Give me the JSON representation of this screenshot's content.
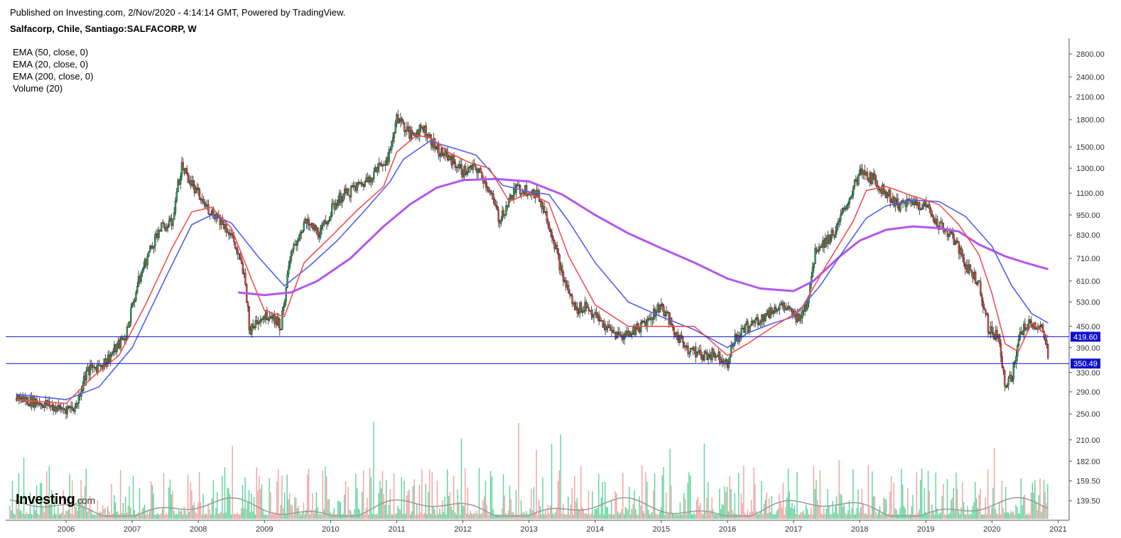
{
  "header": {
    "published": "Published on Investing.com, 2/Nov/2020 - 4:14:14 GMT, Powered by TradingView.",
    "symbol": "Salfacorp, Chile, Santiago:SALFACORP, W"
  },
  "indicators": [
    "EMA (50, close, 0)",
    "EMA (20, close, 0)",
    "EMA (200, close, 0)",
    "Volume (20)"
  ],
  "logo": {
    "main": "Investing",
    "suffix": ".com"
  },
  "colors": {
    "up": "#26a65b",
    "down": "#e8453c",
    "vol_up": "#5ed39a",
    "vol_down": "#f2a0a0",
    "vol_ma": "#9a9a9a",
    "ema20": "#f05050",
    "ema50": "#5060f0",
    "ema200": "#b455f0",
    "hline": "#1010cc",
    "axis": "#555555"
  },
  "chart_data": {
    "type": "line",
    "scale": "log",
    "x_ticks": [
      "2006",
      "2007",
      "2008",
      "2009",
      "2010",
      "2011",
      "2012",
      "2013",
      "2014",
      "2015",
      "2016",
      "2017",
      "2018",
      "2019",
      "2020",
      "2021"
    ],
    "y_ticks": [
      139.5,
      159.5,
      182.0,
      210.0,
      250.0,
      290.0,
      330.0,
      390.0,
      450.0,
      530.0,
      610.0,
      710.0,
      830.0,
      950.0,
      1100.0,
      1300.0,
      1500.0,
      1800.0,
      2100.0,
      2400.0,
      2800.0
    ],
    "price_series": {
      "name": "SALFACORP",
      "x": [
        2005.25,
        2005.6,
        2005.9,
        2006.15,
        2006.3,
        2006.6,
        2006.9,
        2007.1,
        2007.4,
        2007.6,
        2007.75,
        2007.95,
        2008.1,
        2008.3,
        2008.5,
        2008.7,
        2008.78,
        2008.9,
        2009.1,
        2009.25,
        2009.4,
        2009.6,
        2009.85,
        2010.1,
        2010.3,
        2010.5,
        2010.7,
        2010.9,
        2011.0,
        2011.2,
        2011.4,
        2011.6,
        2011.8,
        2012.0,
        2012.2,
        2012.35,
        2012.55,
        2012.8,
        2013.0,
        2013.15,
        2013.3,
        2013.5,
        2013.7,
        2013.85,
        2014.0,
        2014.2,
        2014.4,
        2014.6,
        2014.8,
        2015.0,
        2015.2,
        2015.4,
        2015.6,
        2015.8,
        2016.0,
        2016.1,
        2016.3,
        2016.55,
        2016.8,
        2017.05,
        2017.2,
        2017.35,
        2017.5,
        2017.65,
        2017.85,
        2018.0,
        2018.2,
        2018.4,
        2018.6,
        2018.8,
        2019.0,
        2019.2,
        2019.4,
        2019.6,
        2019.8,
        2019.95,
        2020.1,
        2020.2,
        2020.3,
        2020.45,
        2020.6,
        2020.75,
        2020.85
      ],
      "values": [
        278,
        270,
        258,
        262,
        330,
        355,
        420,
        610,
        860,
        900,
        1320,
        1120,
        1010,
        940,
        830,
        620,
        430,
        475,
        490,
        450,
        720,
        900,
        840,
        1050,
        1120,
        1180,
        1290,
        1430,
        1850,
        1620,
        1710,
        1480,
        1390,
        1270,
        1300,
        1180,
        920,
        1130,
        1130,
        1070,
        900,
        630,
        500,
        520,
        480,
        440,
        420,
        440,
        470,
        520,
        430,
        390,
        370,
        375,
        355,
        410,
        450,
        480,
        520,
        475,
        520,
        770,
        800,
        860,
        1070,
        1260,
        1210,
        1100,
        1010,
        1040,
        1010,
        890,
        820,
        680,
        600,
        440,
        420,
        300,
        320,
        440,
        460,
        440,
        370
      ]
    },
    "ema20": {
      "name": "EMA (20, close, 0)",
      "x": [
        2005.25,
        2006.0,
        2006.4,
        2006.8,
        2007.2,
        2007.6,
        2007.9,
        2008.2,
        2008.5,
        2008.8,
        2009.0,
        2009.3,
        2009.6,
        2010.0,
        2010.4,
        2010.8,
        2011.0,
        2011.3,
        2011.5,
        2011.8,
        2012.1,
        2012.4,
        2012.7,
        2013.0,
        2013.3,
        2013.6,
        2014.0,
        2014.5,
        2015.0,
        2015.5,
        2016.0,
        2016.3,
        2016.7,
        2017.1,
        2017.5,
        2017.9,
        2018.1,
        2018.4,
        2018.8,
        2019.2,
        2019.5,
        2019.8,
        2020.0,
        2020.2,
        2020.4,
        2020.6,
        2020.85
      ],
      "values": [
        275,
        268,
        320,
        370,
        520,
        760,
        970,
        1000,
        870,
        620,
        500,
        480,
        690,
        820,
        980,
        1150,
        1450,
        1620,
        1600,
        1440,
        1350,
        1300,
        1040,
        1100,
        1030,
        720,
        520,
        450,
        450,
        450,
        370,
        400,
        450,
        500,
        680,
        910,
        1120,
        1150,
        1080,
        1020,
        890,
        730,
        560,
        400,
        380,
        460,
        420
      ]
    },
    "ema50": {
      "name": "EMA (50, close, 0)",
      "x": [
        2005.25,
        2006.0,
        2006.5,
        2007.0,
        2007.5,
        2007.9,
        2008.2,
        2008.5,
        2008.9,
        2009.3,
        2009.7,
        2010.1,
        2010.5,
        2010.9,
        2011.1,
        2011.5,
        2011.9,
        2012.2,
        2012.6,
        2013.0,
        2013.3,
        2013.6,
        2014.0,
        2014.5,
        2015.0,
        2015.5,
        2016.0,
        2016.3,
        2016.7,
        2017.0,
        2017.4,
        2017.8,
        2018.1,
        2018.4,
        2018.8,
        2019.2,
        2019.6,
        2020.0,
        2020.3,
        2020.6,
        2020.85
      ],
      "values": [
        285,
        275,
        300,
        390,
        620,
        890,
        950,
        900,
        720,
        590,
        680,
        800,
        970,
        1190,
        1380,
        1560,
        1480,
        1420,
        1160,
        1110,
        1090,
        910,
        690,
        530,
        480,
        440,
        390,
        430,
        460,
        480,
        590,
        770,
        930,
        1010,
        1050,
        1040,
        940,
        770,
        590,
        490,
        460
      ]
    },
    "ema200": {
      "name": "EMA (200, close, 0)",
      "x": [
        2008.6,
        2009.0,
        2009.4,
        2009.8,
        2010.3,
        2010.8,
        2011.2,
        2011.6,
        2012.0,
        2012.5,
        2013.0,
        2013.5,
        2014.0,
        2014.5,
        2015.0,
        2015.5,
        2016.0,
        2016.5,
        2017.0,
        2017.3,
        2017.7,
        2018.0,
        2018.4,
        2018.8,
        2019.2,
        2019.5,
        2019.8,
        2020.2,
        2020.5,
        2020.85
      ],
      "values": [
        565,
        555,
        565,
        610,
        710,
        880,
        1020,
        1140,
        1200,
        1210,
        1190,
        1090,
        950,
        840,
        760,
        690,
        620,
        580,
        570,
        610,
        720,
        800,
        860,
        880,
        870,
        850,
        780,
        720,
        690,
        660
      ]
    },
    "horizontal_lines": [
      {
        "label": "419.60",
        "value": 419.6
      },
      {
        "label": "350.49",
        "value": 350.49
      }
    ],
    "ylim": [
      126,
      3050
    ],
    "xlim": [
      2005.1,
      2021.15
    ]
  }
}
